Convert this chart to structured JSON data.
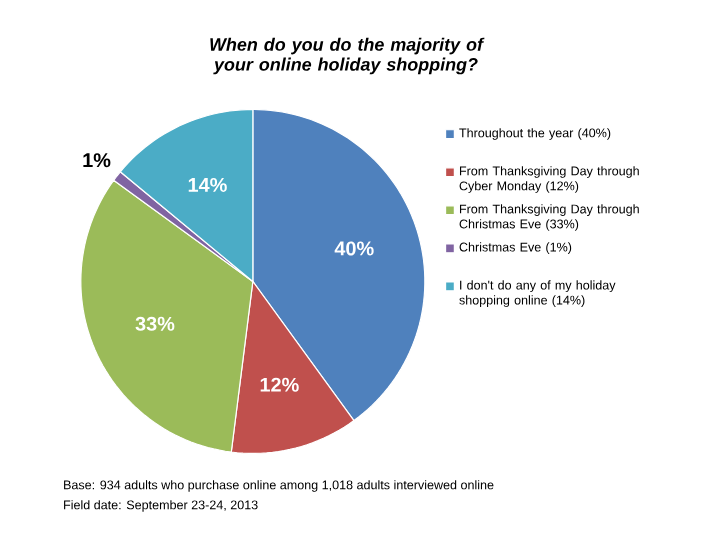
{
  "chart_data": {
    "type": "pie",
    "title": "When do you do the majority of your online holiday shopping?",
    "categories": [
      "Throughout the year (40%)",
      "From Thanksgiving Day through Cyber Monday (12%)",
      "From Thanksgiving Day through Christmas Eve (33%)",
      "Christmas Eve (1%)",
      "I don't do any of my holiday shopping online (14%)"
    ],
    "values": [
      40,
      12,
      33,
      1,
      14
    ],
    "colors": [
      "#4f81bd",
      "#c0504d",
      "#9bbb59",
      "#8064a2",
      "#4bacc6"
    ],
    "value_labels": [
      "40%",
      "12%",
      "33%",
      "1%",
      "14%"
    ],
    "legend": "right",
    "annotations": [
      "Base: 934 adults who purchase online among 1,018 adults interviewed online",
      "Field date: September 23-24, 2013"
    ]
  }
}
